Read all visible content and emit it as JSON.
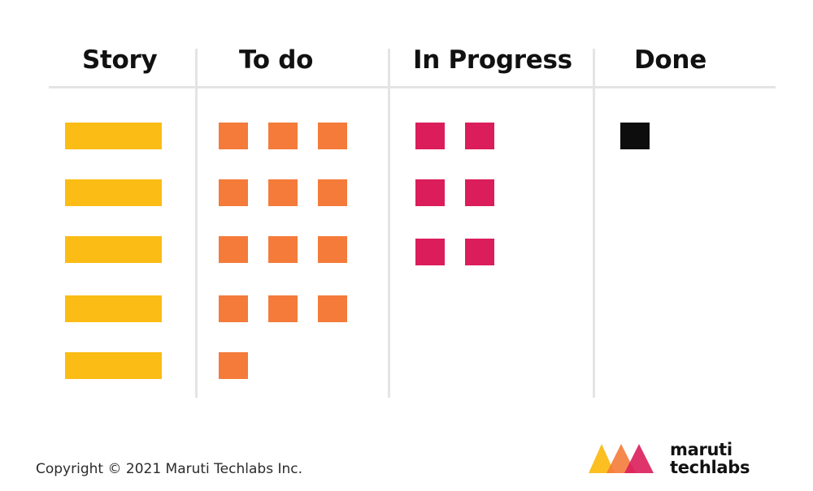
{
  "columns": [
    {
      "title": "Story"
    },
    {
      "title": "To do"
    },
    {
      "title": "In Progress"
    },
    {
      "title": "Done"
    }
  ],
  "board": {
    "story_cards": 5,
    "todo_cards_per_row": [
      3,
      3,
      3,
      3,
      1
    ],
    "in_progress_cards_per_row": [
      2,
      2,
      2
    ],
    "done_cards_per_row": [
      1
    ]
  },
  "colors": {
    "story": "#fbbc15",
    "todo": "#f47b3a",
    "in_progress": "#db1d5c",
    "done": "#0d0d0d",
    "divider": "#e4e4e4"
  },
  "footer": {
    "copyright": "Copyright © 2021 Maruti Techlabs Inc."
  },
  "logo": {
    "line1": "maruti",
    "line2": "techlabs",
    "mark_colors": [
      "#fbbc15",
      "#f47b3a",
      "#db1d5c"
    ]
  }
}
